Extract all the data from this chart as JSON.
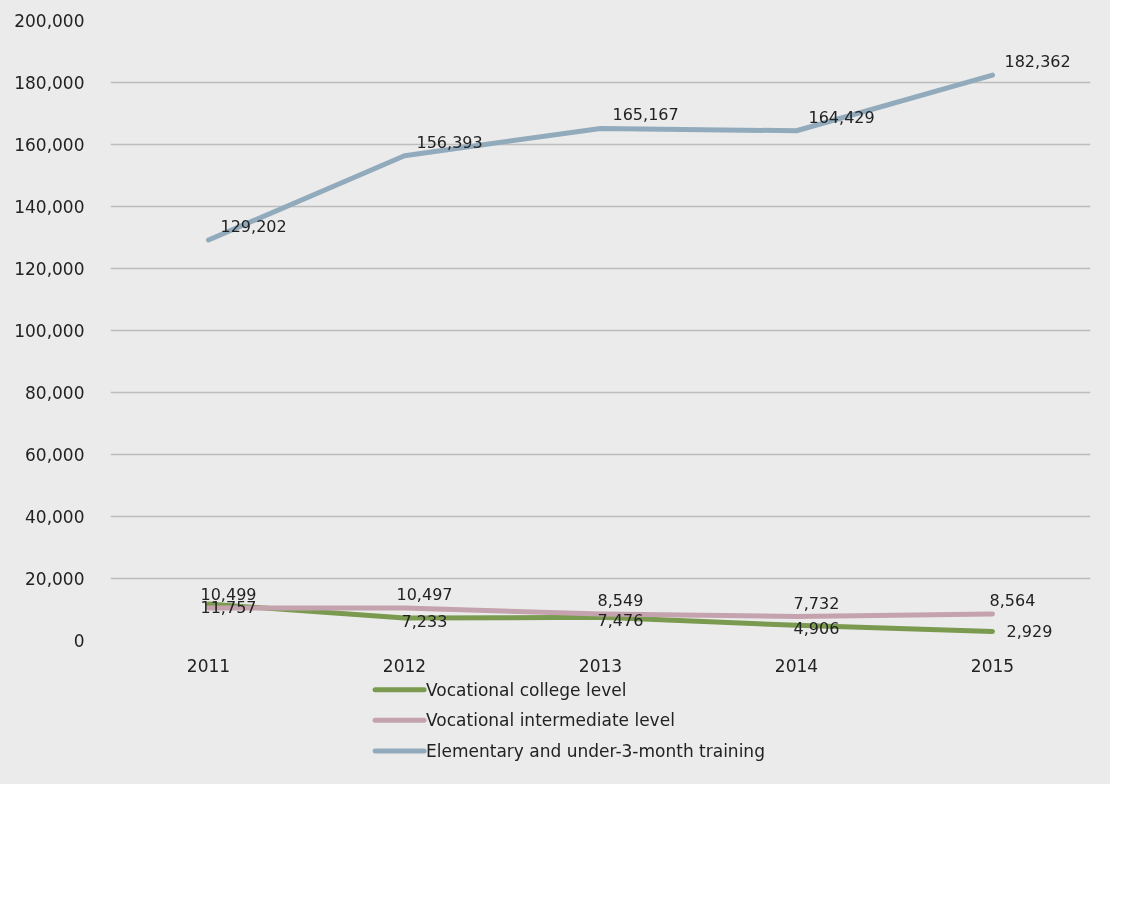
{
  "chart_data": {
    "type": "line",
    "categories": [
      "2011",
      "2012",
      "2013",
      "2014",
      "2015"
    ],
    "series": [
      {
        "name": "Vocational college level",
        "color": "#7a9a50",
        "values": [
          11757,
          7233,
          7476,
          4906,
          2929
        ],
        "value_labels": [
          "11,757",
          "7,233",
          "7,476",
          "4,906",
          "2,929"
        ]
      },
      {
        "name": "Vocational intermediate level",
        "color": "#c4a3ae",
        "values": [
          10499,
          10497,
          8549,
          7732,
          8564
        ],
        "value_labels": [
          "10,499",
          "10,497",
          "8,549",
          "7,732",
          "8,564"
        ]
      },
      {
        "name": "Elementary and under-3-month training",
        "color": "#91abbd",
        "values": [
          129202,
          156393,
          165167,
          164429,
          182362
        ],
        "value_labels": [
          "129,202",
          "156,393",
          "165,167",
          "164,429",
          "182,362"
        ]
      }
    ],
    "ylim": [
      0,
      200000
    ],
    "yticks": [
      {
        "value": 0,
        "label": "0"
      },
      {
        "value": 20000,
        "label": "20,000"
      },
      {
        "value": 40000,
        "label": "40,000"
      },
      {
        "value": 60000,
        "label": "60,000"
      },
      {
        "value": 80000,
        "label": "80,000"
      },
      {
        "value": 100000,
        "label": "100,000"
      },
      {
        "value": 120000,
        "label": "120,000"
      },
      {
        "value": 140000,
        "label": "140,000"
      },
      {
        "value": 160000,
        "label": "160,000"
      },
      {
        "value": 180000,
        "label": "180,000"
      },
      {
        "value": 200000,
        "label": "200,000"
      }
    ],
    "grid": "y",
    "legend": "bottom",
    "marker": "none",
    "line_style": "solid"
  }
}
